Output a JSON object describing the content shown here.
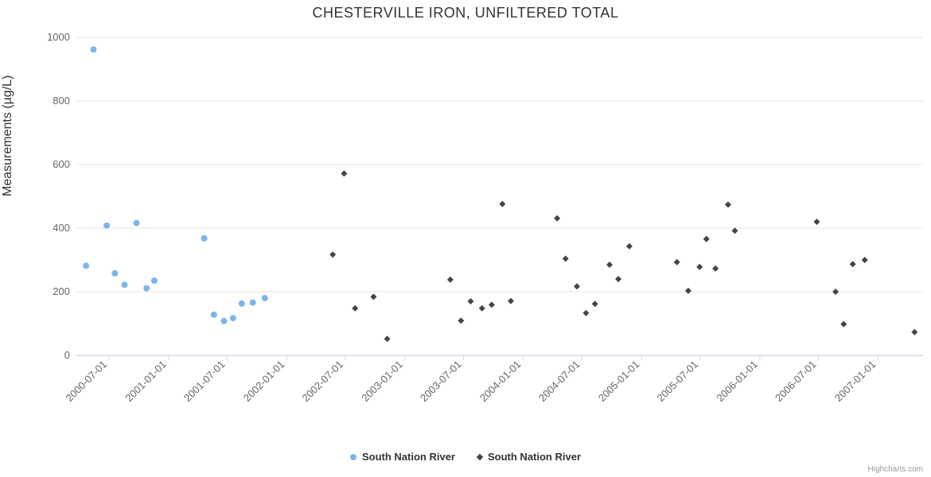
{
  "title": "CHESTERVILLE IRON, UNFILTERED TOTAL",
  "credits": "Highcharts.com",
  "y_axis": {
    "title": "Measurements (µg/L)",
    "ticks": [
      0,
      200,
      400,
      600,
      800,
      1000
    ]
  },
  "x_axis": {
    "tick_labels": [
      "2000-07-01",
      "2001-01-01",
      "2001-07-01",
      "2002-01-01",
      "2002-07-01",
      "2003-01-01",
      "2003-07-01",
      "2004-01-01",
      "2004-07-01",
      "2005-01-01",
      "2005-07-01",
      "2006-01-01",
      "2006-07-01",
      "2007-01-01"
    ]
  },
  "legend": {
    "items": [
      {
        "label": "South Nation River",
        "marker": "circle",
        "color": "#7cb5ec"
      },
      {
        "label": "South Nation River",
        "marker": "diamond",
        "color": "#434348"
      }
    ]
  },
  "colors": {
    "series_blue": "#7cb5ec",
    "series_dark": "#434348",
    "gridline": "#e6e6e6",
    "axis_line": "#ccd6eb",
    "tick_label": "#666666",
    "title_text": "#333333",
    "credits_text": "#999999"
  },
  "chart_data": {
    "type": "scatter",
    "title": "CHESTERVILLE IRON, UNFILTERED TOTAL",
    "xlabel": "",
    "ylabel": "Measurements (µg/L)",
    "ylim": [
      0,
      1000
    ],
    "xlim": [
      "2000-03-22",
      "2007-05-21"
    ],
    "grid": "horizontal-only",
    "legend_position": "bottom-center",
    "x_tick_interval": "6-months",
    "series": [
      {
        "name": "South Nation River",
        "marker": "circle",
        "color": "#7cb5ec",
        "points": [
          [
            "2000-04-21",
            282
          ],
          [
            "2000-05-14",
            962
          ],
          [
            "2000-06-24",
            408
          ],
          [
            "2000-07-19",
            258
          ],
          [
            "2000-08-18",
            222
          ],
          [
            "2000-09-24",
            416
          ],
          [
            "2000-10-25",
            211
          ],
          [
            "2000-11-18",
            235
          ],
          [
            "2001-04-21",
            368
          ],
          [
            "2001-05-21",
            128
          ],
          [
            "2001-06-21",
            108
          ],
          [
            "2001-07-19",
            117
          ],
          [
            "2001-08-15",
            163
          ],
          [
            "2001-09-18",
            166
          ],
          [
            "2001-10-25",
            180
          ]
        ]
      },
      {
        "name": "South Nation River",
        "marker": "diamond",
        "color": "#434348",
        "points": [
          [
            "2002-05-23",
            317
          ],
          [
            "2002-06-27",
            572
          ],
          [
            "2002-07-31",
            148
          ],
          [
            "2002-09-26",
            184
          ],
          [
            "2002-11-07",
            52
          ],
          [
            "2003-05-21",
            238
          ],
          [
            "2003-06-23",
            109
          ],
          [
            "2003-07-23",
            170
          ],
          [
            "2003-08-27",
            148
          ],
          [
            "2003-09-26",
            159
          ],
          [
            "2003-10-29",
            476
          ],
          [
            "2003-11-24",
            171
          ],
          [
            "2004-04-15",
            431
          ],
          [
            "2004-05-11",
            304
          ],
          [
            "2004-06-15",
            217
          ],
          [
            "2004-07-13",
            133
          ],
          [
            "2004-08-10",
            162
          ],
          [
            "2004-09-24",
            285
          ],
          [
            "2004-10-21",
            240
          ],
          [
            "2004-11-24",
            343
          ],
          [
            "2005-04-20",
            293
          ],
          [
            "2005-05-25",
            203
          ],
          [
            "2005-06-29",
            278
          ],
          [
            "2005-07-20",
            366
          ],
          [
            "2005-08-17",
            273
          ],
          [
            "2005-09-25",
            474
          ],
          [
            "2005-10-16",
            392
          ],
          [
            "2006-06-26",
            420
          ],
          [
            "2006-08-23",
            200
          ],
          [
            "2006-09-17",
            98
          ],
          [
            "2006-10-15",
            287
          ],
          [
            "2006-11-21",
            300
          ],
          [
            "2007-04-24",
            73
          ]
        ]
      }
    ]
  }
}
